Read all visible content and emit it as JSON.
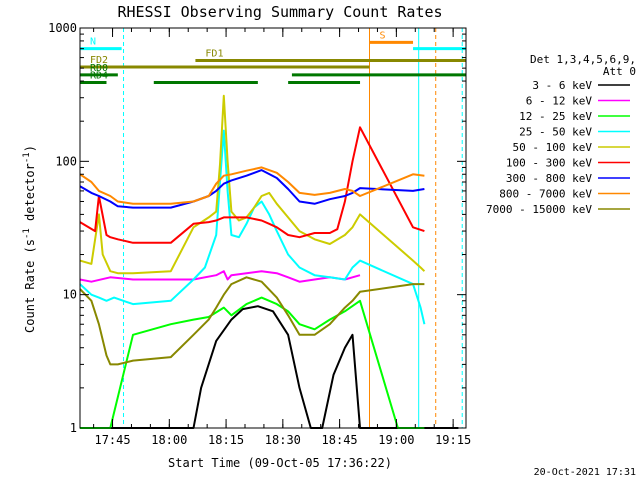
{
  "chart_data": {
    "type": "line",
    "title": "RHESSI Observing Summary Count Rates",
    "xlabel": "Start Time (09-Oct-05 17:36:22)",
    "ylabel_main": "Count Rate (s",
    "ylabel_sup1": "-1",
    "ylabel_mid": " detector",
    "ylabel_sup2": "-1",
    "ylabel_end": ")",
    "timestamp": "20-Oct-2021 17:31",
    "x_range_min": [
      0,
      102
    ],
    "y_scale": "log",
    "ylim": [
      1,
      1000
    ],
    "x_ticks": [
      {
        "t": 8.6,
        "label": "17:45"
      },
      {
        "t": 23.6,
        "label": "18:00"
      },
      {
        "t": 38.6,
        "label": "18:15"
      },
      {
        "t": 53.6,
        "label": "18:30"
      },
      {
        "t": 68.6,
        "label": "18:45"
      },
      {
        "t": 83.6,
        "label": "19:00"
      },
      {
        "t": 98.6,
        "label": "19:15"
      }
    ],
    "y_ticks": [
      {
        "v": 1,
        "label": "1"
      },
      {
        "v": 10,
        "label": "10"
      },
      {
        "v": 100,
        "label": "100"
      },
      {
        "v": 1000,
        "label": "1000"
      }
    ],
    "legend_header": [
      "Det 1,3,4,5,6,9,",
      "Att 0"
    ],
    "series": [
      {
        "name": "3 - 6 keV",
        "color": "#000000",
        "x": [
          0,
          12,
          25,
          30,
          32,
          36,
          40,
          43,
          47,
          51,
          55,
          58,
          61,
          64,
          67,
          70,
          72,
          74,
          100
        ],
        "y": [
          1,
          1,
          1,
          1,
          2.0,
          4.5,
          6.5,
          7.8,
          8.2,
          7.5,
          5.0,
          2.0,
          1,
          1,
          2.5,
          4.0,
          5.0,
          1,
          1
        ]
      },
      {
        "name": "6 - 12 keV",
        "color": "#ff00ff",
        "x": [
          0,
          3,
          8,
          14,
          24,
          30,
          36,
          38,
          39,
          40,
          44,
          48,
          52,
          55,
          58,
          62,
          66,
          70,
          72,
          74
        ],
        "y": [
          13,
          12.5,
          13.5,
          13,
          13,
          13,
          14,
          15,
          13,
          14,
          14.5,
          15,
          14.5,
          13.5,
          12.5,
          13,
          13.5,
          13,
          13.5,
          14
        ]
      },
      {
        "name": "12 - 25 keV",
        "color": "#00ff00",
        "x": [
          0,
          8,
          14,
          24,
          30,
          34,
          38,
          40,
          44,
          48,
          52,
          55,
          58,
          62,
          66,
          70,
          74,
          84,
          87,
          89,
          91
        ],
        "y": [
          1,
          1,
          5.0,
          6.0,
          6.5,
          6.8,
          8.0,
          7.0,
          8.5,
          9.5,
          8.5,
          7.5,
          6.0,
          5.5,
          6.5,
          7.5,
          9.0,
          1,
          1,
          1,
          1
        ]
      },
      {
        "name": "25 - 50 keV",
        "color": "#00ffff",
        "x": [
          0,
          3,
          5,
          7,
          9,
          14,
          24,
          30,
          33,
          36,
          37,
          38,
          39,
          40,
          42,
          44,
          46,
          48,
          50,
          52,
          55,
          58,
          62,
          66,
          70,
          72,
          74,
          88,
          90,
          91
        ],
        "y": [
          12,
          10,
          9.5,
          9.0,
          9.5,
          8.5,
          9.0,
          13,
          16,
          28,
          70,
          170,
          60,
          28,
          27,
          34,
          45,
          50,
          40,
          30,
          20,
          16,
          14,
          13.5,
          13,
          16,
          18,
          12,
          8,
          6
        ]
      },
      {
        "name": "50 - 100 keV",
        "color": "#cccc00",
        "x": [
          0,
          3,
          5,
          6,
          8,
          10,
          14,
          24,
          30,
          34,
          36,
          37,
          38,
          39,
          40,
          42,
          44,
          46,
          48,
          50,
          52,
          55,
          58,
          62,
          66,
          70,
          72,
          74,
          88,
          90,
          91
        ],
        "y": [
          18,
          17,
          40,
          20,
          15,
          14.5,
          14.5,
          15,
          32,
          38,
          42,
          95,
          310,
          100,
          42,
          36,
          38,
          45,
          55,
          58,
          48,
          38,
          30,
          26,
          24,
          28,
          32,
          40,
          18,
          16,
          15
        ]
      },
      {
        "name": "100 - 300 keV",
        "color": "#ff0000",
        "x": [
          0,
          4,
          5,
          7,
          8,
          10,
          14,
          24,
          30,
          34,
          36,
          38,
          40,
          44,
          48,
          50,
          52,
          55,
          58,
          62,
          66,
          68,
          70,
          72,
          74,
          88,
          91
        ],
        "y": [
          35,
          30,
          55,
          28,
          27,
          26,
          24.5,
          24.5,
          34,
          35,
          36,
          38,
          38,
          38,
          36,
          34,
          32,
          28,
          27,
          29,
          29,
          31,
          50,
          100,
          180,
          32,
          30
        ]
      },
      {
        "name": "300 - 800 keV",
        "color": "#0000ff",
        "x": [
          0,
          3,
          5,
          8,
          10,
          14,
          24,
          30,
          34,
          36,
          38,
          40,
          44,
          48,
          52,
          55,
          58,
          62,
          66,
          70,
          72,
          74,
          88,
          91
        ],
        "y": [
          65,
          58,
          55,
          50,
          46,
          45,
          45,
          50,
          55,
          60,
          68,
          72,
          78,
          86,
          75,
          62,
          50,
          48,
          52,
          55,
          58,
          63,
          60,
          62
        ]
      },
      {
        "name": "800 - 7000 keV",
        "color": "#ff8800",
        "x": [
          0,
          3,
          5,
          8,
          10,
          14,
          24,
          30,
          34,
          36,
          38,
          40,
          44,
          48,
          52,
          55,
          58,
          62,
          66,
          70,
          72,
          74,
          88,
          91
        ],
        "y": [
          80,
          70,
          60,
          55,
          50,
          48,
          48,
          50,
          55,
          68,
          78,
          80,
          85,
          90,
          82,
          70,
          58,
          56,
          58,
          62,
          60,
          55,
          80,
          78
        ]
      },
      {
        "name": "7000 - 15000 keV",
        "color": "#888800",
        "x": [
          0,
          3,
          5,
          7,
          8,
          10,
          14,
          24,
          30,
          34,
          36,
          38,
          40,
          44,
          48,
          52,
          55,
          58,
          62,
          66,
          70,
          72,
          74,
          88,
          91
        ],
        "y": [
          11,
          9.0,
          6.0,
          3.5,
          3.0,
          3.0,
          3.2,
          3.4,
          5.0,
          6.5,
          8.0,
          10,
          12,
          13.5,
          12.5,
          9.5,
          7.0,
          5.0,
          5.0,
          6.0,
          8.0,
          9.0,
          10.5,
          12,
          12
        ]
      }
    ],
    "annotations": [
      {
        "label": "N",
        "color": "#00ffff",
        "y": 700,
        "t0": 0,
        "t1": 11
      },
      {
        "label": "",
        "color": "#00ffff",
        "y": 700,
        "t0": 88,
        "t1": 102
      },
      {
        "label": "S",
        "color": "#ff8800",
        "y": 780,
        "t0": 76.5,
        "t1": 88
      },
      {
        "label": "FD1",
        "color": "#888800",
        "y": 570,
        "t0": 30.5,
        "t1": 102
      },
      {
        "label": "FD2",
        "color": "#888800",
        "y": 510,
        "t0": 0,
        "t1": 76.5
      },
      {
        "label": "RD0",
        "color": "#007700",
        "y": 445,
        "t0": 0,
        "t1": 10
      },
      {
        "label": "",
        "color": "#007700",
        "y": 445,
        "t0": 56,
        "t1": 102
      },
      {
        "label": "RD4",
        "color": "#007700",
        "y": 390,
        "t0": 0,
        "t1": 7
      },
      {
        "label": "",
        "color": "#007700",
        "y": 390,
        "t0": 19.5,
        "t1": 47
      },
      {
        "label": "",
        "color": "#007700",
        "y": 390,
        "t0": 55,
        "t1": 74
      }
    ],
    "vlines": [
      {
        "t": 11.5,
        "color": "#00ffff",
        "dash": true
      },
      {
        "t": 89.5,
        "color": "#00ffff",
        "dash": false
      },
      {
        "t": 101,
        "color": "#00ffff",
        "dash": true
      },
      {
        "t": 76.5,
        "color": "#ff8800",
        "dash": false
      },
      {
        "t": 94,
        "color": "#ff8800",
        "dash": true
      }
    ]
  }
}
